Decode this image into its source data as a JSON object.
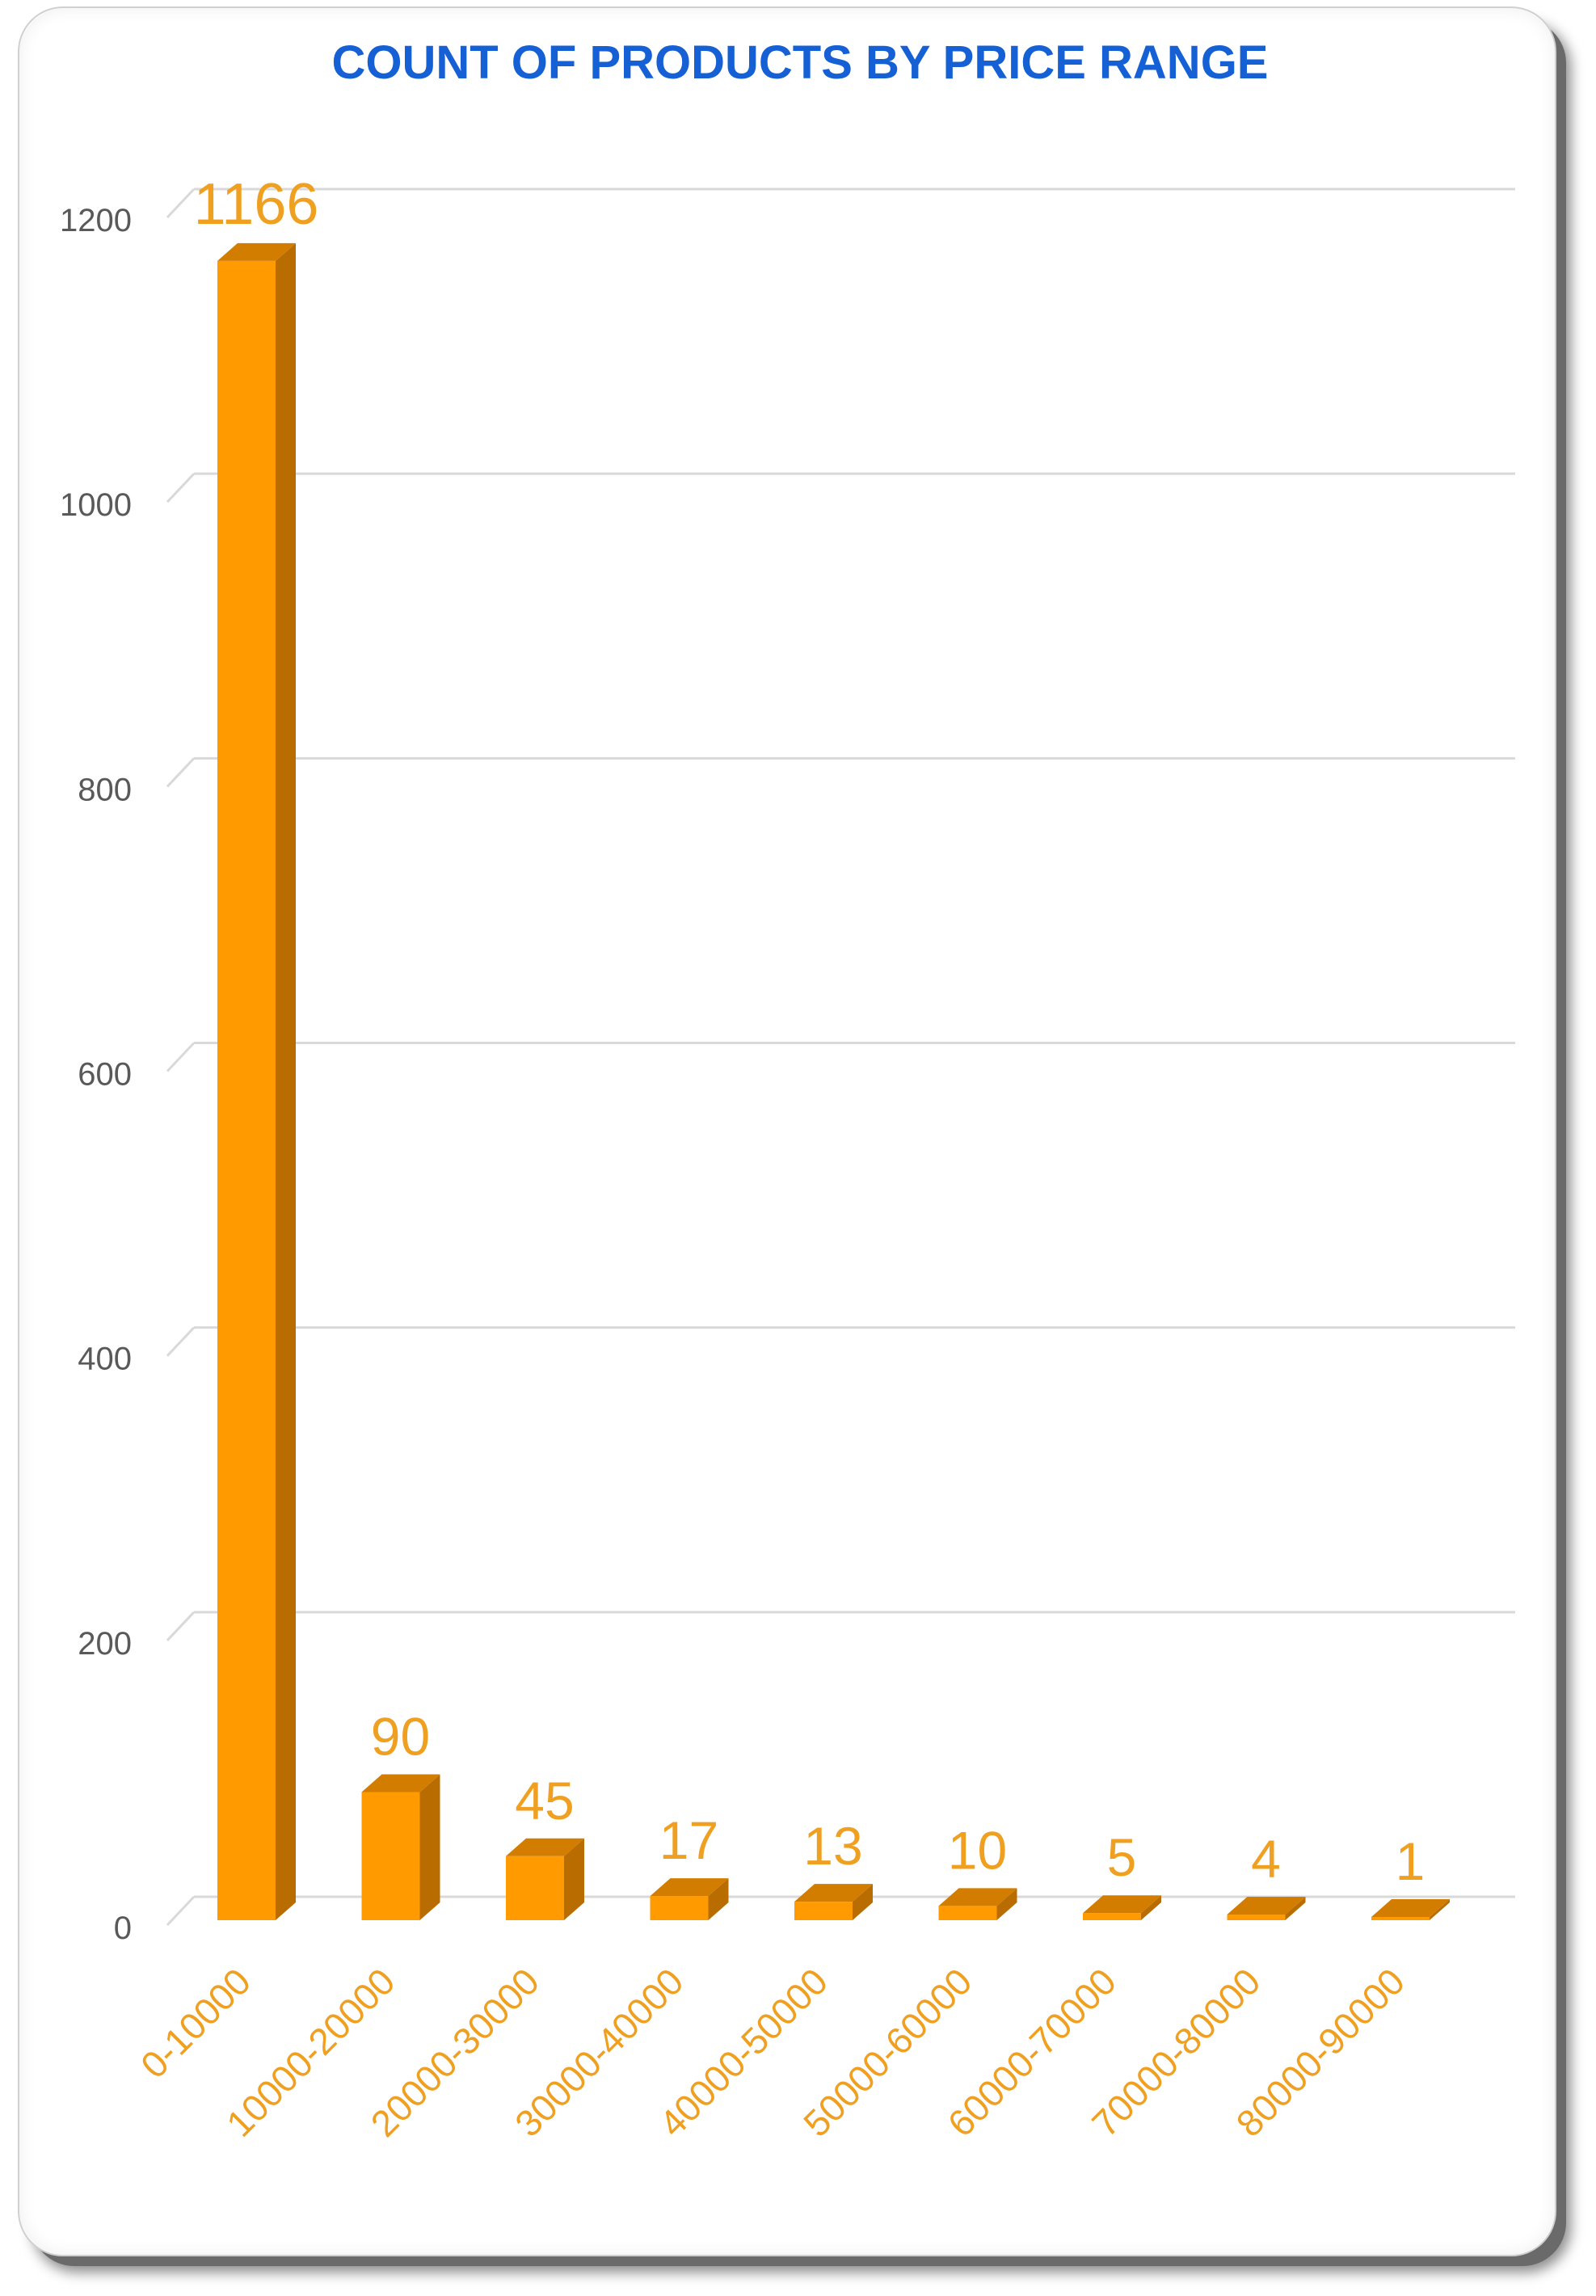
{
  "chart_data": {
    "type": "bar",
    "title": "COUNT OF PRODUCTS BY PRICE RANGE",
    "xlabel": "",
    "ylabel": "",
    "categories": [
      "0-10000",
      "10000-20000",
      "20000-30000",
      "30000-40000",
      "40000-50000",
      "50000-60000",
      "60000-70000",
      "70000-80000",
      "80000-90000"
    ],
    "values": [
      1166,
      90,
      45,
      17,
      13,
      10,
      5,
      4,
      1
    ],
    "yticks": [
      0,
      200,
      400,
      600,
      800,
      1000,
      1200
    ],
    "ylim": [
      0,
      1200
    ],
    "grid": true,
    "legend": "none",
    "style": "3d-column"
  },
  "colors": {
    "title": "#1560d4",
    "bar_front": "#ff9a00",
    "bar_top": "#d27d00",
    "bar_side": "#b96d00",
    "data_label": "#f0a020",
    "category_label": "#f0a020",
    "tick_label": "#595959",
    "gridline": "#d9d9d9"
  }
}
